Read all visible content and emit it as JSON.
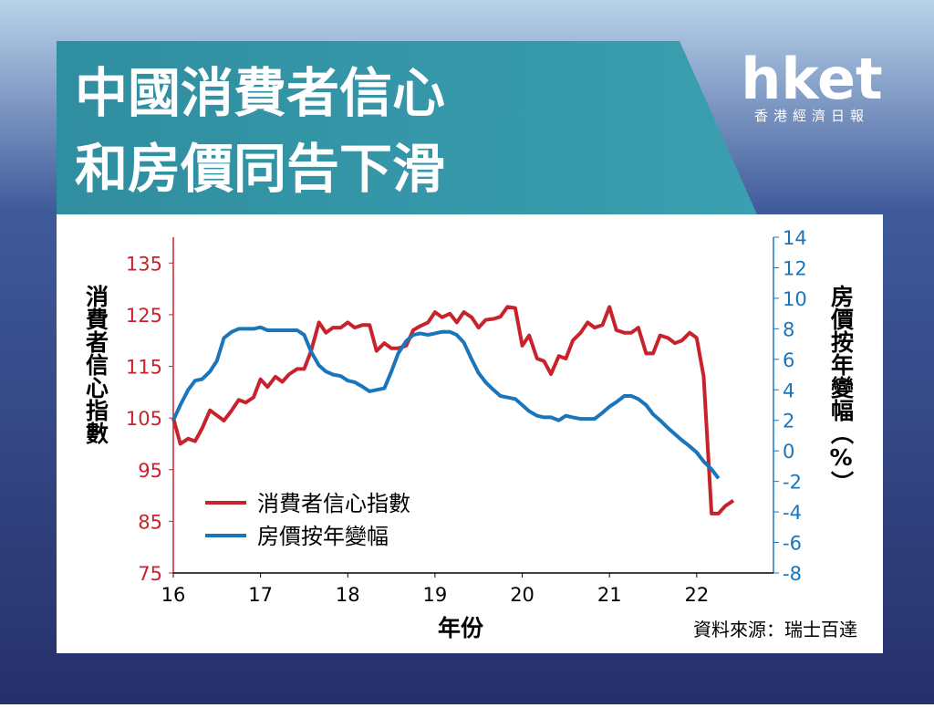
{
  "header": {
    "title_lines": [
      "中國消費者信心",
      "和房價同告下滑"
    ],
    "logo": "hket",
    "logo_subtitle": "香港經濟日報"
  },
  "chart_data": {
    "type": "line",
    "y_label": "消費者信心指數",
    "y2_label": "房價按年變幅（%）",
    "x_label": "年份",
    "source": "資料來源：瑞士百達",
    "xlim": [
      16,
      22.88
    ],
    "xticks": [
      16,
      17,
      18,
      19,
      20,
      21,
      22
    ],
    "ylim": [
      75,
      140
    ],
    "yticks": [
      75,
      85,
      95,
      105,
      115,
      125,
      135
    ],
    "y_color": "#c8232c",
    "y2lim": [
      -8,
      14
    ],
    "y2ticks": [
      -8,
      -6,
      -4,
      -2,
      0,
      2,
      4,
      6,
      8,
      10,
      12,
      14
    ],
    "y2_color": "#1b75bb",
    "grid": false,
    "legend": "lower left",
    "series": [
      {
        "name": "消費者信心指數",
        "color": "#c8232c",
        "axis": "y",
        "x": [
          16,
          16.08,
          16.17,
          16.25,
          16.33,
          16.42,
          16.5,
          16.58,
          16.67,
          16.75,
          16.83,
          16.92,
          17,
          17.08,
          17.17,
          17.25,
          17.33,
          17.42,
          17.5,
          17.58,
          17.67,
          17.75,
          17.83,
          17.92,
          18,
          18.08,
          18.17,
          18.25,
          18.33,
          18.42,
          18.5,
          18.58,
          18.67,
          18.75,
          18.83,
          18.92,
          19,
          19.08,
          19.17,
          19.25,
          19.33,
          19.42,
          19.5,
          19.58,
          19.67,
          19.75,
          19.83,
          19.92,
          20,
          20.08,
          20.17,
          20.25,
          20.33,
          20.42,
          20.5,
          20.58,
          20.67,
          20.75,
          20.83,
          20.92,
          21,
          21.08,
          21.17,
          21.25,
          21.33,
          21.42,
          21.5,
          21.58,
          21.67,
          21.75,
          21.83,
          21.92,
          22,
          22.08,
          22.17,
          22.25,
          22.33,
          22.42
        ],
        "values": [
          105,
          100,
          101,
          100.5,
          103,
          106.5,
          105.5,
          104.5,
          106.5,
          108.5,
          108,
          109,
          112.5,
          111,
          113,
          112,
          113.5,
          114.5,
          114.5,
          118,
          123.5,
          121.5,
          122.5,
          122.5,
          123.5,
          122.5,
          123,
          123,
          118,
          119.5,
          118.5,
          118.5,
          119,
          122,
          122.8,
          123.5,
          125.5,
          124.5,
          125.2,
          123.5,
          125.5,
          124.5,
          122.5,
          124,
          124.2,
          124.6,
          126.5,
          126.3,
          119,
          121,
          116.5,
          116,
          113.5,
          117,
          116.5,
          120,
          121.5,
          123.5,
          122.5,
          123,
          126.5,
          122,
          121.5,
          121.5,
          122.5,
          117.5,
          117.5,
          121,
          120.5,
          119.5,
          120,
          121.5,
          120.5,
          113,
          86.5,
          86.5,
          88,
          89
        ]
      },
      {
        "name": "房價按年變幅",
        "color": "#1b75bb",
        "axis": "y2",
        "x": [
          16,
          16.08,
          16.17,
          16.25,
          16.33,
          16.42,
          16.5,
          16.58,
          16.67,
          16.75,
          16.83,
          16.92,
          17,
          17.08,
          17.17,
          17.25,
          17.33,
          17.42,
          17.5,
          17.58,
          17.67,
          17.75,
          17.83,
          17.92,
          18,
          18.08,
          18.17,
          18.25,
          18.33,
          18.42,
          18.5,
          18.58,
          18.67,
          18.75,
          18.83,
          18.92,
          19,
          19.08,
          19.17,
          19.25,
          19.33,
          19.42,
          19.5,
          19.58,
          19.67,
          19.75,
          19.83,
          19.92,
          20,
          20.08,
          20.17,
          20.25,
          20.33,
          20.42,
          20.5,
          20.58,
          20.67,
          20.75,
          20.83,
          20.92,
          21,
          21.08,
          21.17,
          21.25,
          21.33,
          21.42,
          21.5,
          21.58,
          21.67,
          21.75,
          21.83,
          21.92,
          22,
          22.08,
          22.17,
          22.25
        ],
        "values": [
          2.0,
          3.0,
          4.0,
          4.6,
          4.7,
          5.2,
          5.9,
          7.4,
          7.8,
          8.0,
          8.0,
          8.0,
          8.1,
          7.9,
          7.9,
          7.9,
          7.9,
          7.9,
          7.6,
          6.5,
          5.6,
          5.2,
          5.0,
          4.9,
          4.6,
          4.5,
          4.2,
          3.9,
          4.0,
          4.1,
          5.2,
          6.4,
          7.2,
          7.6,
          7.7,
          7.6,
          7.7,
          7.8,
          7.8,
          7.6,
          7.1,
          6.0,
          5.1,
          4.5,
          4.0,
          3.6,
          3.5,
          3.4,
          3.0,
          2.6,
          2.3,
          2.2,
          2.2,
          2.0,
          2.3,
          2.2,
          2.1,
          2.1,
          2.1,
          2.5,
          2.9,
          3.2,
          3.6,
          3.6,
          3.4,
          3.0,
          2.4,
          2.0,
          1.5,
          1.1,
          0.7,
          0.3,
          -0.1,
          -0.7,
          -1.2,
          -1.8
        ]
      }
    ]
  }
}
